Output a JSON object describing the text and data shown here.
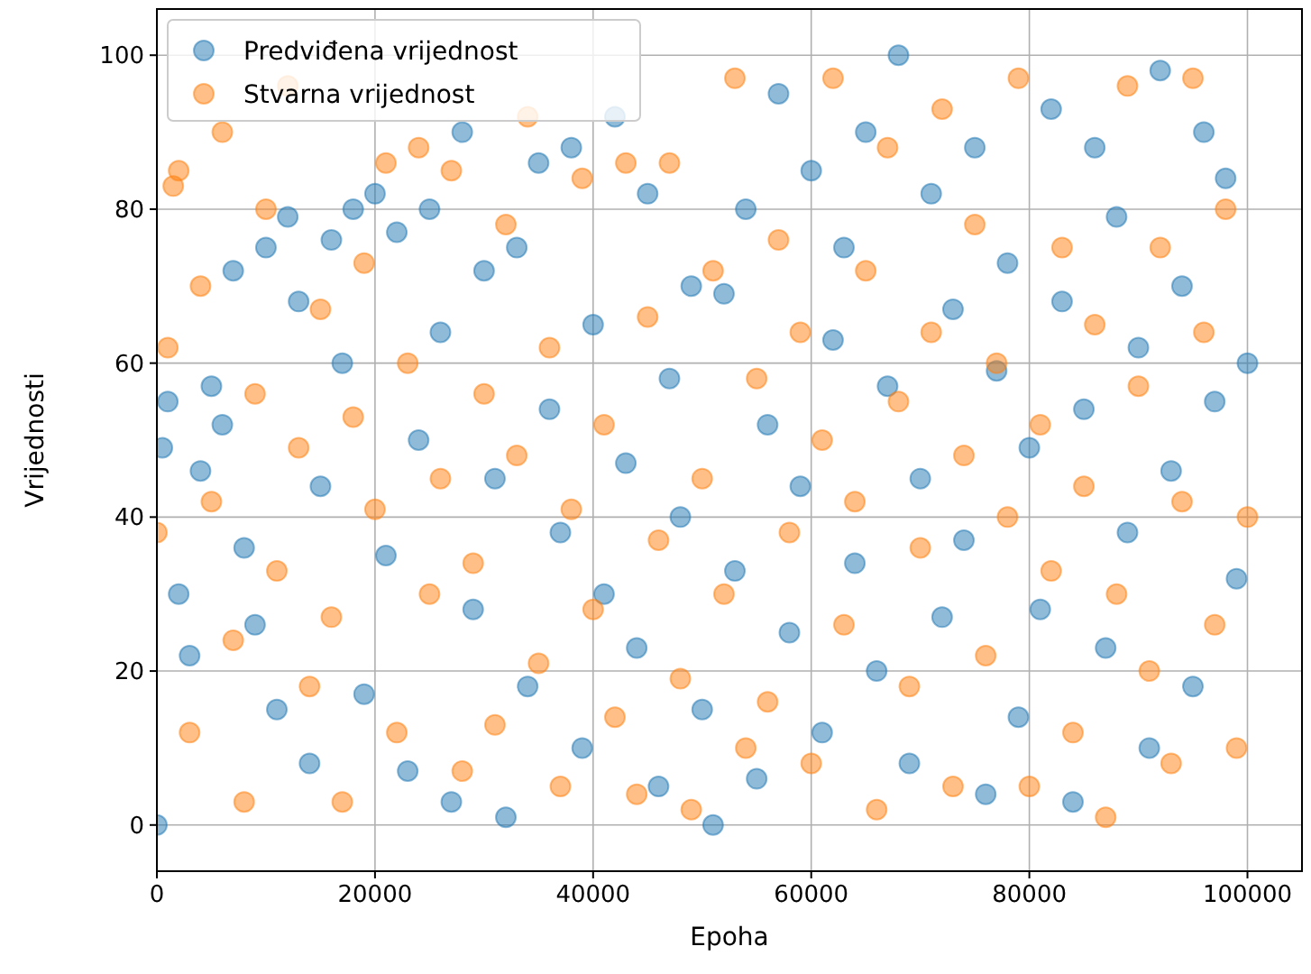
{
  "chart_data": {
    "type": "scatter",
    "xlabel": "Epoha",
    "ylabel": "Vrijednosti",
    "xlim": [
      0,
      105000
    ],
    "ylim": [
      -6,
      106
    ],
    "xticks": [
      0,
      20000,
      40000,
      60000,
      80000,
      100000
    ],
    "yticks": [
      0,
      20,
      40,
      60,
      80,
      100
    ],
    "grid": true,
    "legend": "top left",
    "marker": "circle",
    "series": [
      {
        "name": "Predviđena vrijednost",
        "color": "#1f77b4",
        "x": [
          0,
          500,
          1000,
          2000,
          3000,
          4000,
          5000,
          6000,
          7000,
          8000,
          9000,
          10000,
          11000,
          12000,
          13000,
          14000,
          15000,
          16000,
          17000,
          18000,
          19000,
          20000,
          21000,
          22000,
          23000,
          24000,
          25000,
          26000,
          27000,
          28000,
          29000,
          30000,
          31000,
          32000,
          33000,
          34000,
          35000,
          36000,
          37000,
          38000,
          39000,
          40000,
          41000,
          42000,
          43000,
          44000,
          45000,
          46000,
          47000,
          48000,
          49000,
          50000,
          51000,
          52000,
          53000,
          54000,
          55000,
          56000,
          57000,
          58000,
          59000,
          60000,
          61000,
          62000,
          63000,
          64000,
          65000,
          66000,
          67000,
          68000,
          69000,
          70000,
          71000,
          72000,
          73000,
          74000,
          75000,
          76000,
          77000,
          78000,
          79000,
          80000,
          81000,
          82000,
          83000,
          84000,
          85000,
          86000,
          87000,
          88000,
          89000,
          90000,
          91000,
          92000,
          93000,
          94000,
          95000,
          96000,
          97000,
          98000,
          99000,
          100000
        ],
        "values": [
          0,
          49,
          55,
          30,
          22,
          46,
          57,
          52,
          72,
          36,
          26,
          75,
          15,
          79,
          68,
          8,
          44,
          76,
          60,
          80,
          17,
          82,
          35,
          77,
          7,
          50,
          80,
          64,
          3,
          90,
          28,
          72,
          45,
          1,
          75,
          18,
          86,
          54,
          38,
          88,
          10,
          65,
          30,
          92,
          47,
          23,
          82,
          5,
          58,
          40,
          70,
          15,
          0,
          69,
          33,
          80,
          6,
          52,
          95,
          25,
          44,
          85,
          12,
          63,
          75,
          34,
          90,
          20,
          57,
          100,
          8,
          45,
          82,
          27,
          67,
          37,
          88,
          4,
          59,
          73,
          14,
          49,
          28,
          93,
          68,
          3,
          54,
          88,
          23,
          79,
          38,
          62,
          10,
          98,
          46,
          70,
          18,
          90,
          55,
          84,
          32,
          60
        ]
      },
      {
        "name": "Stvarna vrijednost",
        "color": "#ff7f0e",
        "x": [
          0,
          1000,
          1500,
          2000,
          3000,
          4000,
          5000,
          6000,
          7000,
          8000,
          9000,
          10000,
          11000,
          12000,
          13000,
          14000,
          15000,
          16000,
          17000,
          18000,
          19000,
          20000,
          21000,
          22000,
          23000,
          24000,
          25000,
          26000,
          27000,
          28000,
          29000,
          30000,
          31000,
          32000,
          33000,
          34000,
          35000,
          36000,
          37000,
          38000,
          39000,
          40000,
          41000,
          42000,
          43000,
          44000,
          45000,
          46000,
          47000,
          48000,
          49000,
          50000,
          51000,
          52000,
          53000,
          54000,
          55000,
          56000,
          57000,
          58000,
          59000,
          60000,
          61000,
          62000,
          63000,
          64000,
          65000,
          66000,
          67000,
          68000,
          69000,
          70000,
          71000,
          72000,
          73000,
          74000,
          75000,
          76000,
          77000,
          78000,
          79000,
          80000,
          81000,
          82000,
          83000,
          84000,
          85000,
          86000,
          87000,
          88000,
          89000,
          90000,
          91000,
          92000,
          93000,
          94000,
          95000,
          96000,
          97000,
          98000,
          99000,
          100000
        ],
        "values": [
          38,
          62,
          83,
          85,
          12,
          70,
          42,
          90,
          24,
          3,
          56,
          80,
          33,
          96,
          49,
          18,
          67,
          27,
          3,
          53,
          73,
          41,
          86,
          12,
          60,
          88,
          30,
          45,
          85,
          7,
          34,
          56,
          13,
          78,
          48,
          92,
          21,
          62,
          5,
          41,
          84,
          28,
          52,
          14,
          86,
          4,
          66,
          37,
          86,
          19,
          2,
          45,
          72,
          30,
          97,
          10,
          58,
          16,
          76,
          38,
          64,
          8,
          50,
          97,
          26,
          42,
          72,
          2,
          88,
          55,
          18,
          36,
          64,
          93,
          5,
          48,
          78,
          22,
          60,
          40,
          97,
          5,
          52,
          33,
          75,
          12,
          44,
          65,
          1,
          30,
          96,
          57,
          20,
          75,
          8,
          42,
          97,
          64,
          26,
          80,
          10,
          40
        ]
      }
    ]
  }
}
